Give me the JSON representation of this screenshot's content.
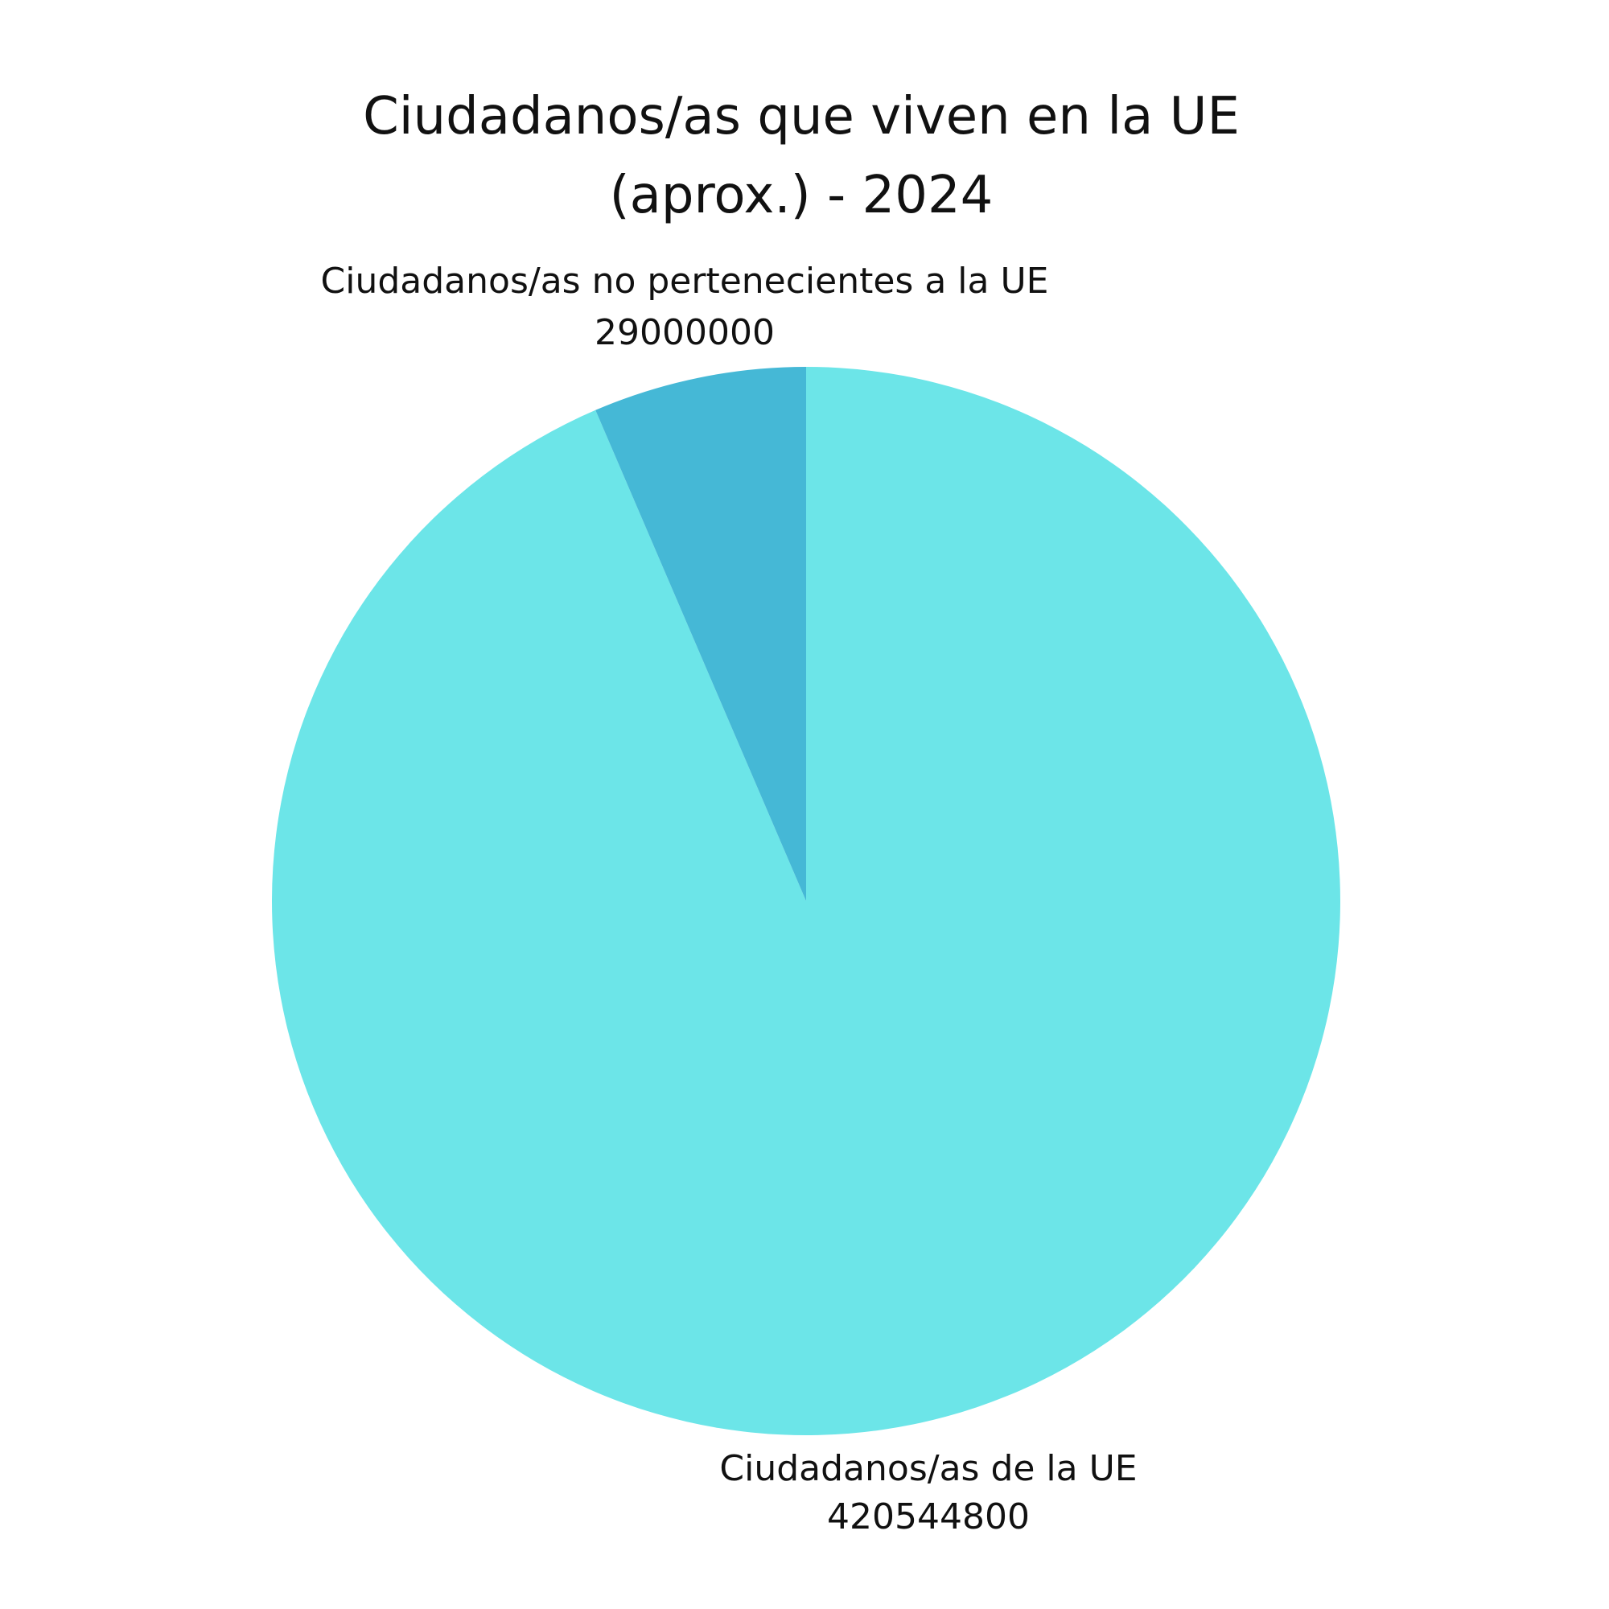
{
  "chart_data": {
    "type": "pie",
    "title": "Ciudadanos/as que viven en la UE (aprox.) - 2024",
    "categories": [
      "Ciudadanos/as de la UE",
      "Ciudadanos/as no pertenecientes a la UE"
    ],
    "values": [
      420544800,
      29000000
    ],
    "colors": [
      "#6ce5e8",
      "#45b8d6"
    ]
  }
}
